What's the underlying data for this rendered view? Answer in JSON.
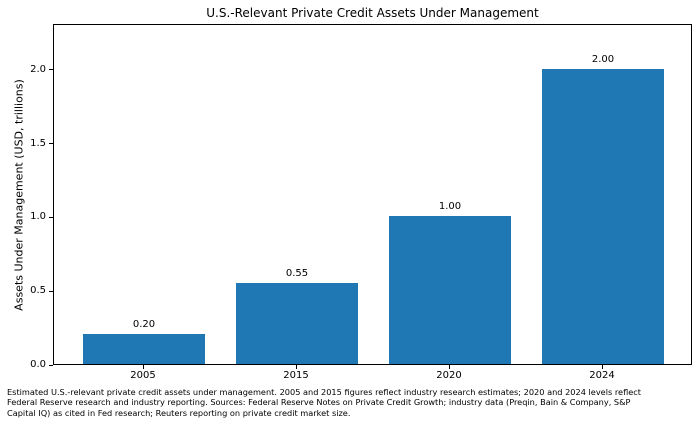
{
  "chart_data": {
    "type": "bar",
    "title": "U.S.-Relevant Private Credit Assets Under Management",
    "categories": [
      "2005",
      "2015",
      "2020",
      "2024"
    ],
    "values": [
      0.2,
      0.55,
      1.0,
      2.0
    ],
    "bar_labels": [
      "0.20",
      "0.55",
      "1.00",
      "2.00"
    ],
    "xlabel": "",
    "ylabel": "Assets Under Management (USD, trillions)",
    "yticks": [
      0.0,
      0.5,
      1.0,
      1.5,
      2.0
    ],
    "ytick_labels": [
      "0.0",
      "0.5",
      "1.0",
      "1.5",
      "2.0"
    ],
    "ylim": [
      0,
      2.31
    ],
    "grid": false,
    "legend": null,
    "bar_color": "#1f77b4",
    "frame": "full-box"
  },
  "caption": {
    "lines": [
      "Estimated U.S.-relevant private credit assets under management. 2005 and 2015 figures reflect industry research estimates; 2020 and 2024 levels reflect",
      "Federal Reserve research and industry reporting. Sources: Federal Reserve Notes on Private Credit Growth; industry data (Preqin, Bain & Company, S&P",
      "Capital IQ) as cited in Fed research; Reuters reporting on private credit market size."
    ]
  }
}
